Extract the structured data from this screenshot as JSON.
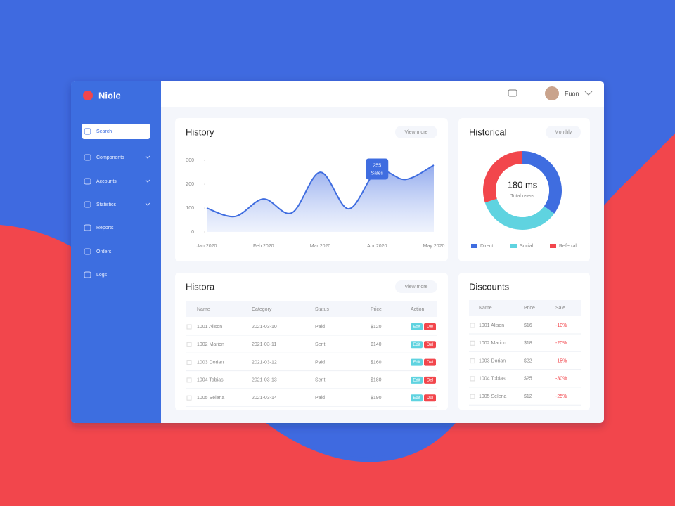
{
  "app": {
    "name": "Niole"
  },
  "header": {
    "user": "Fuon"
  },
  "sidebar": {
    "items": [
      "Search",
      "Components",
      "Accounts",
      "Statistics",
      "Reports",
      "Orders",
      "Logs"
    ]
  },
  "line_panel": {
    "button": "View more",
    "chart_data": {
      "type": "area",
      "title": "History",
      "categories": [
        "Jan 2020",
        null,
        "Feb 2020",
        null,
        "Mar 2020",
        null,
        "Apr 2020",
        null,
        "May 2020"
      ],
      "series": [
        {
          "name": "Sales",
          "color": "#3f6de0",
          "values": [
            100,
            65,
            138,
            80,
            250,
            97,
            255,
            220,
            280
          ]
        }
      ],
      "ylim": [
        0,
        330
      ],
      "yticks": [
        0,
        100,
        200,
        300
      ]
    }
  },
  "donut_panel": {
    "button": "Monthly",
    "chart_data": {
      "type": "pie",
      "title": "Historical",
      "center_label": "180 ms",
      "center_sub": "Total users",
      "categories": [
        "Direct",
        "Social",
        "Referral"
      ],
      "values": [
        35,
        35,
        30
      ],
      "colors": [
        "#3f6de0",
        "#5fd3e0",
        "#f2464c"
      ]
    }
  },
  "table": {
    "title": "Histora",
    "button": "View more",
    "columns": [
      "Name",
      "Category",
      "Status",
      "Price",
      "Action"
    ],
    "rows": [
      [
        "1001 Alison",
        "2021-03-10",
        "Paid",
        "$120"
      ],
      [
        "1002 Marion",
        "2021-03-11",
        "Sent",
        "$140"
      ],
      [
        "1003 Dorian",
        "2021-03-12",
        "Paid",
        "$160"
      ],
      [
        "1004 Tobias",
        "2021-03-13",
        "Sent",
        "$180"
      ],
      [
        "1005 Selena",
        "2021-03-14",
        "Paid",
        "$190"
      ]
    ],
    "actions": [
      "Edit",
      "Del"
    ]
  },
  "discounts": {
    "title": "Discounts",
    "columns": [
      "Name",
      "Price",
      "Sale"
    ],
    "rows": [
      [
        "1001 Alison",
        "$16",
        "-10%"
      ],
      [
        "1002 Marion",
        "$18",
        "-20%"
      ],
      [
        "1003 Dorian",
        "$22",
        "-15%"
      ],
      [
        "1004 Tobias",
        "$25",
        "-30%"
      ],
      [
        "1005 Selena",
        "$12",
        "-25%"
      ]
    ]
  }
}
